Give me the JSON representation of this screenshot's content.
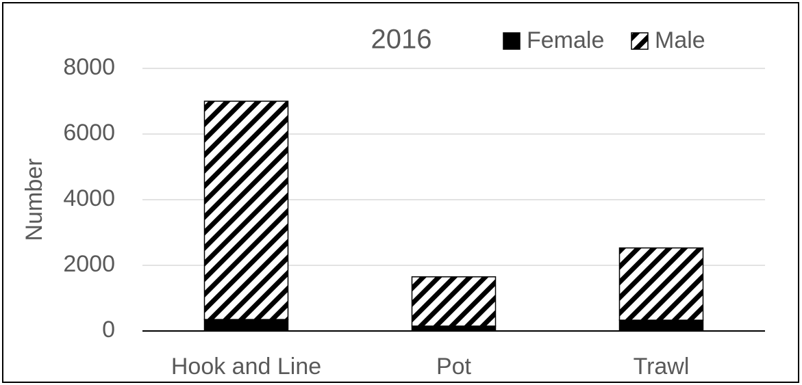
{
  "chart_data": {
    "type": "stacked_bar",
    "title": "2016",
    "y_label": "Number",
    "categories": [
      "Hook and Line",
      "Pot",
      "Trawl"
    ],
    "series": [
      {
        "name": "Female",
        "color": "#000000",
        "values": [
          350,
          150,
          330
        ]
      },
      {
        "name": "Male",
        "color": "#000000",
        "hatch": true,
        "values": [
          6650,
          1500,
          2200
        ]
      }
    ],
    "ylim": [
      0,
      8000
    ],
    "yticks": [
      0,
      2000,
      4000,
      6000,
      8000
    ],
    "grid": true
  }
}
